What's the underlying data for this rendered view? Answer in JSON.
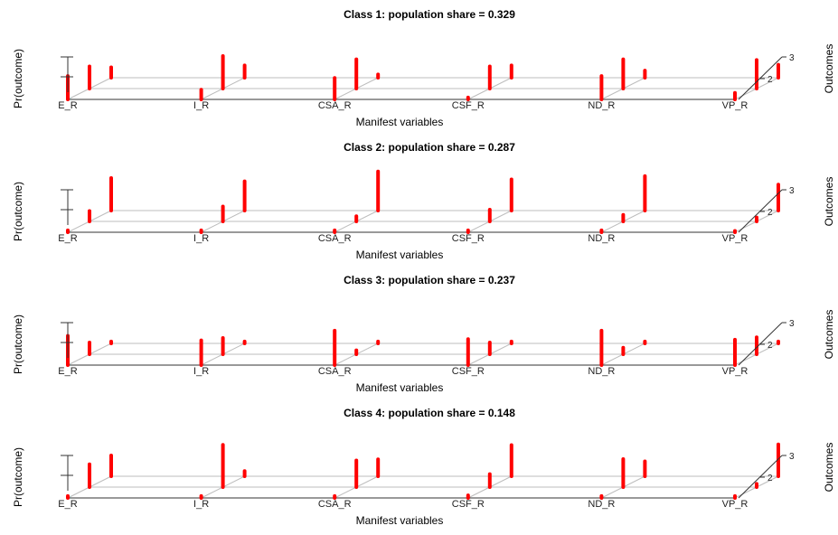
{
  "chart_data": [
    {
      "type": "bar3d",
      "title": "Class 1: population share = 0.329",
      "xlabel": "Manifest variables",
      "ylabel": "Pr(outcome)",
      "zlabel": "Outcomes",
      "categories": [
        "E_R",
        "I_R",
        "CSA_R",
        "CSF_R",
        "ND_R",
        "VP_R"
      ],
      "outcome_ticks": [
        "2",
        "3"
      ],
      "series": [
        {
          "values": [
            0.72,
            0.3,
            0.66,
            0.06,
            0.72,
            0.2
          ]
        },
        {
          "values": [
            0.68,
            1.0,
            0.9,
            0.68,
            0.9,
            0.88
          ]
        },
        {
          "values": [
            0.32,
            0.38,
            0.1,
            0.38,
            0.22,
            0.4
          ]
        }
      ]
    },
    {
      "type": "bar3d",
      "title": "Class 2: population share = 0.287",
      "xlabel": "Manifest variables",
      "ylabel": "Pr(outcome)",
      "zlabel": "Outcomes",
      "categories": [
        "E_R",
        "I_R",
        "CSA_R",
        "CSF_R",
        "ND_R",
        "VP_R"
      ],
      "outcome_ticks": [
        "2",
        "3"
      ],
      "series": [
        {
          "values": [
            0.06,
            0.06,
            0.06,
            0.06,
            0.06,
            0.04
          ]
        },
        {
          "values": [
            0.32,
            0.46,
            0.16,
            0.36,
            0.2,
            0.12
          ]
        },
        {
          "values": [
            1.0,
            0.9,
            1.2,
            0.96,
            1.06,
            0.8
          ]
        }
      ]
    },
    {
      "type": "bar3d",
      "title": "Class 3: population share = 0.237",
      "xlabel": "Manifest variables",
      "ylabel": "Pr(outcome)",
      "zlabel": "Outcomes",
      "categories": [
        "E_R",
        "I_R",
        "CSA_R",
        "CSF_R",
        "ND_R",
        "VP_R"
      ],
      "outcome_ticks": [
        "2",
        "3"
      ],
      "series": [
        {
          "values": [
            0.9,
            0.76,
            1.06,
            0.8,
            1.06,
            0.78
          ]
        },
        {
          "values": [
            0.36,
            0.5,
            0.12,
            0.36,
            0.2,
            0.52
          ]
        },
        {
          "values": [
            0.06,
            0.06,
            0.06,
            0.06,
            0.06,
            0.06
          ]
        }
      ]
    },
    {
      "type": "bar3d",
      "title": "Class 4: population share = 0.148",
      "xlabel": "Manifest variables",
      "ylabel": "Pr(outcome)",
      "zlabel": "Outcomes",
      "categories": [
        "E_R",
        "I_R",
        "CSA_R",
        "CSF_R",
        "ND_R",
        "VP_R"
      ],
      "outcome_ticks": [
        "2",
        "3"
      ],
      "series": [
        {
          "values": [
            0.06,
            0.06,
            0.06,
            0.08,
            0.06,
            0.06
          ]
        },
        {
          "values": [
            0.7,
            1.3,
            0.82,
            0.4,
            0.86,
            0.1
          ]
        },
        {
          "values": [
            0.64,
            0.16,
            0.52,
            0.96,
            0.46,
            0.98
          ]
        }
      ]
    }
  ]
}
